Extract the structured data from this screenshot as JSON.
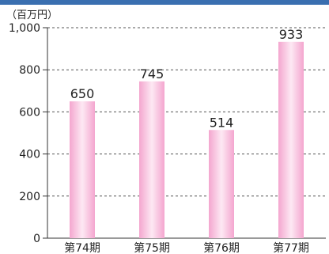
{
  "chart_data": {
    "type": "bar",
    "unit_label": "（百万円）",
    "categories": [
      "第74期",
      "第75期",
      "第76期",
      "第77期"
    ],
    "values": [
      650,
      745,
      514,
      933
    ],
    "data_labels": [
      "650",
      "745",
      "514",
      "933"
    ],
    "yticks": [
      0,
      200,
      400,
      600,
      800,
      1000
    ],
    "ytick_labels": [
      "0",
      "200",
      "400",
      "600",
      "800",
      "1,000"
    ],
    "ylim": [
      0,
      1000
    ],
    "grid": true,
    "bar_color": "#f4a6cf",
    "bar_highlight": "#fde8f3"
  },
  "colors": {
    "top_bar": "#3a6fb0"
  }
}
